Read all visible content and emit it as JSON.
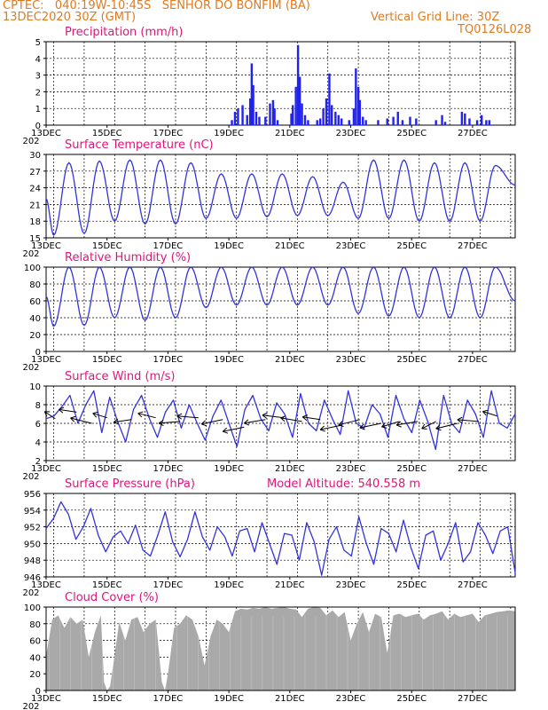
{
  "header": {
    "line1": "CPTEC:   040:19W-10:45S   SENHOR DO BONFIM (BA)",
    "line2_left": "13DEC2020 30Z (GMT)",
    "line2_right": "Vertical Grid Line: 30Z",
    "line3_right": "TQ0126L028"
  },
  "x_tick_labels": [
    "13DEC",
    "15DEC",
    "17DEC",
    "19DEC",
    "21DEC",
    "23DEC",
    "25DEC",
    "27DEC"
  ],
  "x_tick_days": [
    0,
    2,
    4,
    6,
    8,
    10,
    12,
    14
  ],
  "x_year_label": "202",
  "model_altitude": "Model Altitude: 540.558 m",
  "colors": {
    "line": "#3333dd",
    "bars": "#2222ee",
    "cloud": "#a9a9a9",
    "title": "#e0157a",
    "header": "#e07a1f"
  },
  "chart_data": [
    {
      "type": "bar",
      "title": "Precipitation (mm/h)",
      "ylim": [
        0,
        5
      ],
      "yticks": [
        0,
        1,
        2,
        3,
        4,
        5
      ],
      "xlim_days": [
        0,
        15.4
      ],
      "series": [
        {
          "values": [
            [
              6.1,
              0.3
            ],
            [
              6.2,
              0.8
            ],
            [
              6.3,
              1.0
            ],
            [
              6.45,
              1.2
            ],
            [
              6.6,
              0.6
            ],
            [
              6.7,
              1.6
            ],
            [
              6.75,
              3.7
            ],
            [
              6.8,
              2.4
            ],
            [
              6.9,
              0.8
            ],
            [
              7.0,
              0.5
            ],
            [
              7.2,
              0.5
            ],
            [
              7.35,
              1.3
            ],
            [
              7.45,
              1.5
            ],
            [
              7.5,
              1.0
            ],
            [
              7.6,
              0.3
            ],
            [
              8.05,
              0.7
            ],
            [
              8.1,
              1.2
            ],
            [
              8.2,
              2.3
            ],
            [
              8.27,
              4.8
            ],
            [
              8.33,
              2.9
            ],
            [
              8.4,
              1.3
            ],
            [
              8.5,
              0.6
            ],
            [
              8.6,
              0.3
            ],
            [
              8.9,
              0.3
            ],
            [
              9.0,
              0.4
            ],
            [
              9.1,
              1.0
            ],
            [
              9.2,
              1.6
            ],
            [
              9.3,
              3.1
            ],
            [
              9.38,
              1.2
            ],
            [
              9.5,
              0.8
            ],
            [
              9.6,
              0.6
            ],
            [
              9.7,
              0.4
            ],
            [
              9.95,
              0.3
            ],
            [
              10.1,
              1.0
            ],
            [
              10.17,
              3.4
            ],
            [
              10.25,
              2.3
            ],
            [
              10.3,
              1.5
            ],
            [
              10.4,
              0.5
            ],
            [
              10.5,
              0.3
            ],
            [
              10.9,
              0.3
            ],
            [
              11.2,
              0.4
            ],
            [
              11.4,
              0.5
            ],
            [
              11.55,
              0.8
            ],
            [
              11.7,
              0.3
            ],
            [
              11.95,
              0.5
            ],
            [
              12.15,
              0.4
            ],
            [
              12.8,
              0.3
            ],
            [
              13.0,
              0.6
            ],
            [
              13.1,
              0.2
            ],
            [
              13.65,
              0.8
            ],
            [
              13.75,
              0.7
            ],
            [
              13.9,
              0.4
            ],
            [
              14.15,
              0.3
            ],
            [
              14.3,
              0.6
            ],
            [
              14.45,
              0.3
            ],
            [
              14.55,
              0.3
            ]
          ]
        }
      ]
    },
    {
      "type": "line",
      "title": "Surface Temperature (nC)",
      "ylim": [
        15,
        30
      ],
      "yticks": [
        15,
        18,
        21,
        24,
        27,
        30
      ],
      "xlim_days": [
        0,
        15.4
      ],
      "series": [
        {
          "mins": [
            15.5,
            15.8,
            18.0,
            17.5,
            17.5,
            18.5,
            18.5,
            18.8,
            19.0,
            19.0,
            18.5,
            18.5,
            18.0,
            18.0,
            18.0
          ],
          "maxs": [
            28.5,
            28.8,
            29.0,
            29.0,
            28.5,
            26.5,
            26.5,
            26.5,
            26.0,
            25.0,
            29.0,
            29.0,
            28.5,
            28.5,
            28.0
          ],
          "end": 24.5
        }
      ]
    },
    {
      "type": "line",
      "title": "Relative Humidity (%)",
      "ylim": [
        0,
        100
      ],
      "yticks": [
        0,
        20,
        40,
        60,
        80,
        100
      ],
      "xlim_days": [
        0,
        15.4
      ],
      "series": [
        {
          "mins": [
            30,
            31,
            40,
            37,
            40,
            52,
            55,
            55,
            55,
            55,
            45,
            42,
            40,
            40,
            40
          ],
          "maxs": [
            100,
            100,
            100,
            100,
            100,
            100,
            100,
            100,
            100,
            100,
            100,
            100,
            100,
            100,
            100
          ],
          "end": 60
        }
      ]
    },
    {
      "type": "line",
      "title": "Surface Wind (m/s)",
      "ylim": [
        2,
        10
      ],
      "yticks": [
        2,
        4,
        6,
        8,
        10
      ],
      "xlim_days": [
        0,
        15.4
      ],
      "series": [
        {
          "values": [
            6.5,
            6.8,
            7.8,
            9.0,
            6.0,
            8.0,
            9.5,
            5.0,
            8.8,
            6.2,
            4.0,
            7.5,
            9.0,
            6.5,
            4.5,
            7.2,
            8.5,
            5.5,
            8.0,
            6.0,
            4.2,
            6.8,
            8.5,
            6.0,
            3.5,
            7.5,
            9.0,
            6.5,
            5.2,
            8.2,
            7.0,
            4.5,
            9.2,
            6.0,
            5.2,
            8.5,
            6.5,
            4.8,
            9.5,
            6.0,
            5.5,
            8.0,
            7.0,
            4.5,
            9.0,
            6.5,
            5.0,
            8.5,
            6.2,
            3.2,
            9.0,
            6.0,
            5.0,
            8.5,
            7.0,
            4.5,
            9.5,
            6.0,
            5.5,
            7.0
          ]
        }
      ],
      "vectors": [
        [
          0.3,
          6.5,
          -0.3,
          0.8
        ],
        [
          1.0,
          7.2,
          -0.5,
          0.3
        ],
        [
          1.5,
          6.0,
          -0.6,
          0.6
        ],
        [
          2.0,
          6.6,
          -0.4,
          0.5
        ],
        [
          2.8,
          6.4,
          -0.5,
          -0.3
        ],
        [
          3.6,
          6.6,
          -0.5,
          0.5
        ],
        [
          4.4,
          6.2,
          -0.6,
          -0.2
        ],
        [
          5.0,
          6.6,
          -0.6,
          0.2
        ],
        [
          5.8,
          6.4,
          -0.6,
          -0.5
        ],
        [
          6.5,
          5.6,
          -0.6,
          -0.5
        ],
        [
          7.2,
          6.4,
          -0.6,
          -0.4
        ],
        [
          7.8,
          6.6,
          -0.6,
          0.3
        ],
        [
          8.4,
          6.2,
          -0.6,
          0.4
        ],
        [
          9.0,
          6.4,
          -0.5,
          0.3
        ],
        [
          9.7,
          5.8,
          -0.6,
          -0.5
        ],
        [
          10.3,
          6.4,
          -0.6,
          -0.6
        ],
        [
          11.0,
          6.0,
          -0.6,
          -0.5
        ],
        [
          11.6,
          6.2,
          -0.5,
          -0.6
        ],
        [
          12.2,
          6.2,
          -0.6,
          -0.4
        ],
        [
          12.8,
          6.2,
          -0.4,
          -0.8
        ],
        [
          13.5,
          6.0,
          -0.6,
          -0.6
        ],
        [
          14.2,
          6.2,
          -0.6,
          0.2
        ],
        [
          14.8,
          6.8,
          -0.4,
          0.5
        ]
      ]
    },
    {
      "type": "line",
      "title": "Surface Pressure (hPa)",
      "ylim": [
        946,
        956
      ],
      "yticks": [
        946,
        948,
        950,
        952,
        954,
        956
      ],
      "xlim_days": [
        0,
        15.4
      ],
      "series": [
        {
          "values": [
            951.8,
            953.0,
            955.0,
            953.5,
            950.5,
            952.0,
            954.2,
            951.0,
            949.0,
            950.8,
            951.5,
            950.0,
            952.2,
            949.2,
            948.5,
            951.0,
            953.8,
            950.2,
            948.4,
            950.5,
            953.8,
            950.8,
            949.2,
            952.0,
            950.8,
            948.5,
            951.5,
            951.8,
            949.0,
            952.5,
            950.0,
            947.5,
            951.2,
            951.0,
            948.0,
            952.5,
            950.2,
            946.2,
            950.5,
            952.0,
            949.2,
            948.5,
            953.2,
            950.0,
            947.5,
            951.8,
            951.2,
            949.0,
            952.8,
            949.5,
            947.0,
            951.0,
            951.5,
            948.0,
            950.0,
            952.5,
            947.8,
            949.0,
            952.5,
            951.0,
            948.8,
            951.5,
            952.0,
            946.5
          ]
        }
      ]
    },
    {
      "type": "area",
      "title": "Cloud Cover (%)",
      "ylim": [
        0,
        100
      ],
      "yticks": [
        0,
        20,
        40,
        60,
        80,
        100
      ],
      "xlim_days": [
        0,
        15.4
      ],
      "series": [
        {
          "values": [
            [
              0,
              42
            ],
            [
              0.2,
              85
            ],
            [
              0.4,
              90
            ],
            [
              0.6,
              75
            ],
            [
              0.8,
              88
            ],
            [
              1.0,
              80
            ],
            [
              1.2,
              85
            ],
            [
              1.4,
              40
            ],
            [
              1.6,
              70
            ],
            [
              1.8,
              90
            ],
            [
              1.9,
              10
            ],
            [
              2.0,
              0
            ],
            [
              2.1,
              5
            ],
            [
              2.2,
              30
            ],
            [
              2.4,
              82
            ],
            [
              2.6,
              60
            ],
            [
              2.8,
              85
            ],
            [
              3.0,
              88
            ],
            [
              3.2,
              70
            ],
            [
              3.4,
              80
            ],
            [
              3.6,
              85
            ],
            [
              3.8,
              10
            ],
            [
              3.9,
              0
            ],
            [
              4.0,
              20
            ],
            [
              4.2,
              75
            ],
            [
              4.4,
              80
            ],
            [
              4.6,
              90
            ],
            [
              4.8,
              85
            ],
            [
              5.0,
              65
            ],
            [
              5.2,
              30
            ],
            [
              5.4,
              65
            ],
            [
              5.6,
              85
            ],
            [
              5.8,
              80
            ],
            [
              6.0,
              70
            ],
            [
              6.2,
              95
            ],
            [
              6.4,
              98
            ],
            [
              6.6,
              97
            ],
            [
              6.8,
              99
            ],
            [
              7.0,
              98
            ],
            [
              7.2,
              100
            ],
            [
              7.4,
              98
            ],
            [
              7.6,
              99
            ],
            [
              7.8,
              100
            ],
            [
              8.0,
              98
            ],
            [
              8.2,
              97
            ],
            [
              8.4,
              88
            ],
            [
              8.6,
              98
            ],
            [
              8.8,
              100
            ],
            [
              9.0,
              99
            ],
            [
              9.2,
              90
            ],
            [
              9.4,
              96
            ],
            [
              9.6,
              88
            ],
            [
              9.8,
              94
            ],
            [
              10.0,
              60
            ],
            [
              10.2,
              80
            ],
            [
              10.4,
              94
            ],
            [
              10.6,
              70
            ],
            [
              10.8,
              92
            ],
            [
              11.0,
              88
            ],
            [
              11.2,
              45
            ],
            [
              11.4,
              90
            ],
            [
              11.6,
              92
            ],
            [
              11.8,
              88
            ],
            [
              12.0,
              90
            ],
            [
              12.2,
              92
            ],
            [
              12.4,
              85
            ],
            [
              12.6,
              90
            ],
            [
              12.8,
              92
            ],
            [
              13.0,
              95
            ],
            [
              13.2,
              85
            ],
            [
              13.4,
              92
            ],
            [
              13.6,
              88
            ],
            [
              13.8,
              90
            ],
            [
              14.0,
              92
            ],
            [
              14.2,
              82
            ],
            [
              14.4,
              90
            ],
            [
              14.6,
              92
            ],
            [
              14.8,
              94
            ],
            [
              15.0,
              95
            ],
            [
              15.2,
              96
            ],
            [
              15.4,
              95
            ]
          ]
        }
      ]
    }
  ]
}
